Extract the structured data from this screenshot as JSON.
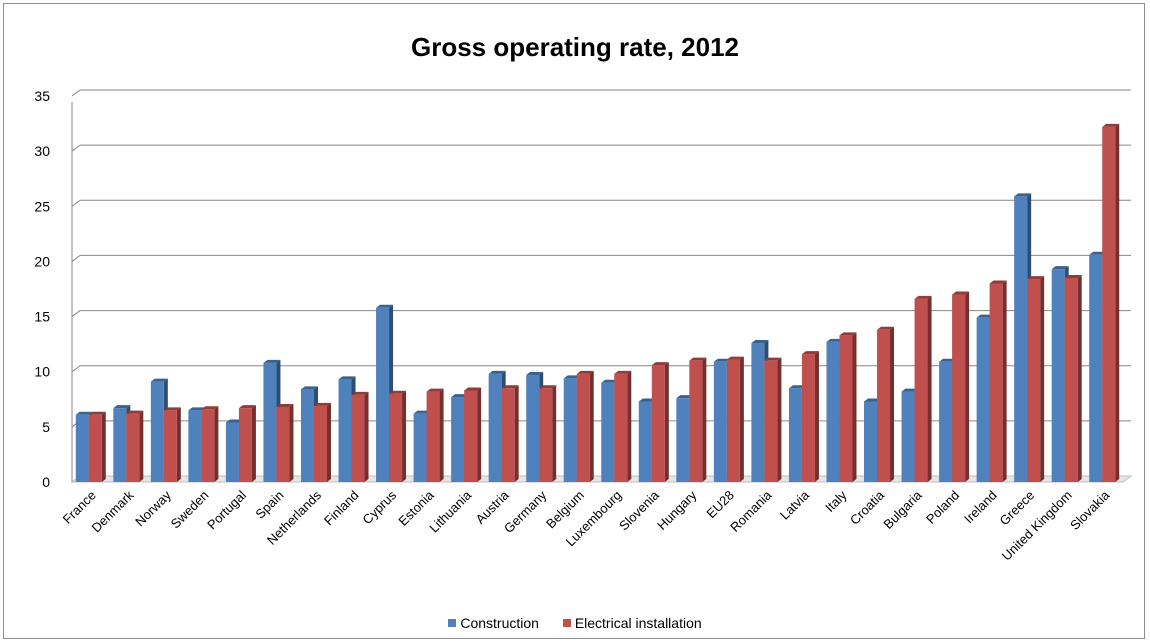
{
  "chart_data": {
    "type": "bar",
    "title": "Gross operating rate, 2012",
    "xlabel": "",
    "ylabel": "",
    "ylim": [
      0,
      35
    ],
    "yticks": [
      0,
      5,
      10,
      15,
      20,
      25,
      30,
      35
    ],
    "grid": true,
    "legend_position": "bottom",
    "categories": [
      "France",
      "Denmark",
      "Norway",
      "Sweden",
      "Portugal",
      "Spain",
      "Netherlands",
      "Finland",
      "Cyprus",
      "Estonia",
      "Lithuania",
      "Austria",
      "Germany",
      "Belgium",
      "Luxembourg",
      "Slovenia",
      "Hungary",
      "EU28",
      "Romania",
      "Latvia",
      "Italy",
      "Croatia",
      "Bulgaria",
      "Poland",
      "Ireland",
      "Greece",
      "United Kingdom",
      "Slovakia"
    ],
    "series": [
      {
        "name": "Construction",
        "color": "#4f81bd",
        "values": [
          6.1,
          6.7,
          9.1,
          6.5,
          5.4,
          10.8,
          8.4,
          9.3,
          15.8,
          6.2,
          7.7,
          9.8,
          9.7,
          9.4,
          9.0,
          7.3,
          7.6,
          10.9,
          12.6,
          8.5,
          12.7,
          7.3,
          8.2,
          10.9,
          14.9,
          25.9,
          19.3,
          20.6
        ]
      },
      {
        "name": "Electrical installation",
        "color": "#c0504d",
        "values": [
          6.1,
          6.2,
          6.5,
          6.6,
          6.7,
          6.8,
          6.9,
          7.9,
          8.0,
          8.2,
          8.3,
          8.5,
          8.5,
          9.8,
          9.8,
          10.6,
          11.0,
          11.1,
          11.0,
          11.6,
          13.3,
          13.8,
          16.6,
          17.0,
          18.0,
          18.4,
          18.5,
          32.2
        ]
      }
    ]
  }
}
